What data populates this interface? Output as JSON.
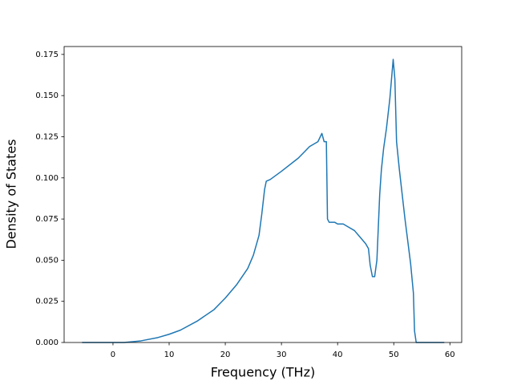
{
  "chart_data": {
    "type": "line",
    "xlabel": "Frequency (THz)",
    "ylabel": "Density of States",
    "x": [
      -5.5,
      0,
      2,
      5,
      8,
      10,
      12,
      15,
      18,
      20,
      22,
      24,
      25,
      26,
      26.5,
      27,
      27.3,
      28,
      30,
      33,
      35,
      36.5,
      37.2,
      37.6,
      38,
      38.2,
      38.5,
      39.5,
      40,
      41,
      42,
      43,
      44,
      45,
      45.5,
      45.8,
      46.2,
      46.6,
      47,
      47.5,
      47.8,
      48.2,
      48.7,
      49.3,
      49.9,
      50.2,
      50.5,
      51,
      52,
      53,
      53.5,
      53.7,
      54,
      59
    ],
    "values": [
      0,
      0,
      0,
      0.001,
      0.003,
      0.005,
      0.0075,
      0.013,
      0.02,
      0.027,
      0.035,
      0.045,
      0.053,
      0.065,
      0.078,
      0.093,
      0.098,
      0.099,
      0.104,
      0.112,
      0.119,
      0.122,
      0.127,
      0.122,
      0.122,
      0.075,
      0.073,
      0.073,
      0.072,
      0.072,
      0.07,
      0.068,
      0.064,
      0.06,
      0.057,
      0.047,
      0.04,
      0.04,
      0.05,
      0.09,
      0.105,
      0.118,
      0.13,
      0.148,
      0.172,
      0.16,
      0.122,
      0.105,
      0.075,
      0.048,
      0.03,
      0.007,
      0,
      0
    ],
    "color": "#1f77b4",
    "xlim": [
      -8.7,
      62.1
    ],
    "xticks": [
      0,
      10,
      20,
      30,
      40,
      50,
      60
    ],
    "ylim": [
      0,
      0.1798
    ],
    "yticks": [
      {
        "value": 0,
        "label": "0.000"
      },
      0.025,
      {
        "value": 0.05,
        "label": "0.050"
      },
      0.075,
      {
        "value": 0.1,
        "label": "0.100"
      },
      0.125,
      {
        "value": 0.15,
        "label": "0.150"
      },
      0.175
    ],
    "grid": false
  }
}
